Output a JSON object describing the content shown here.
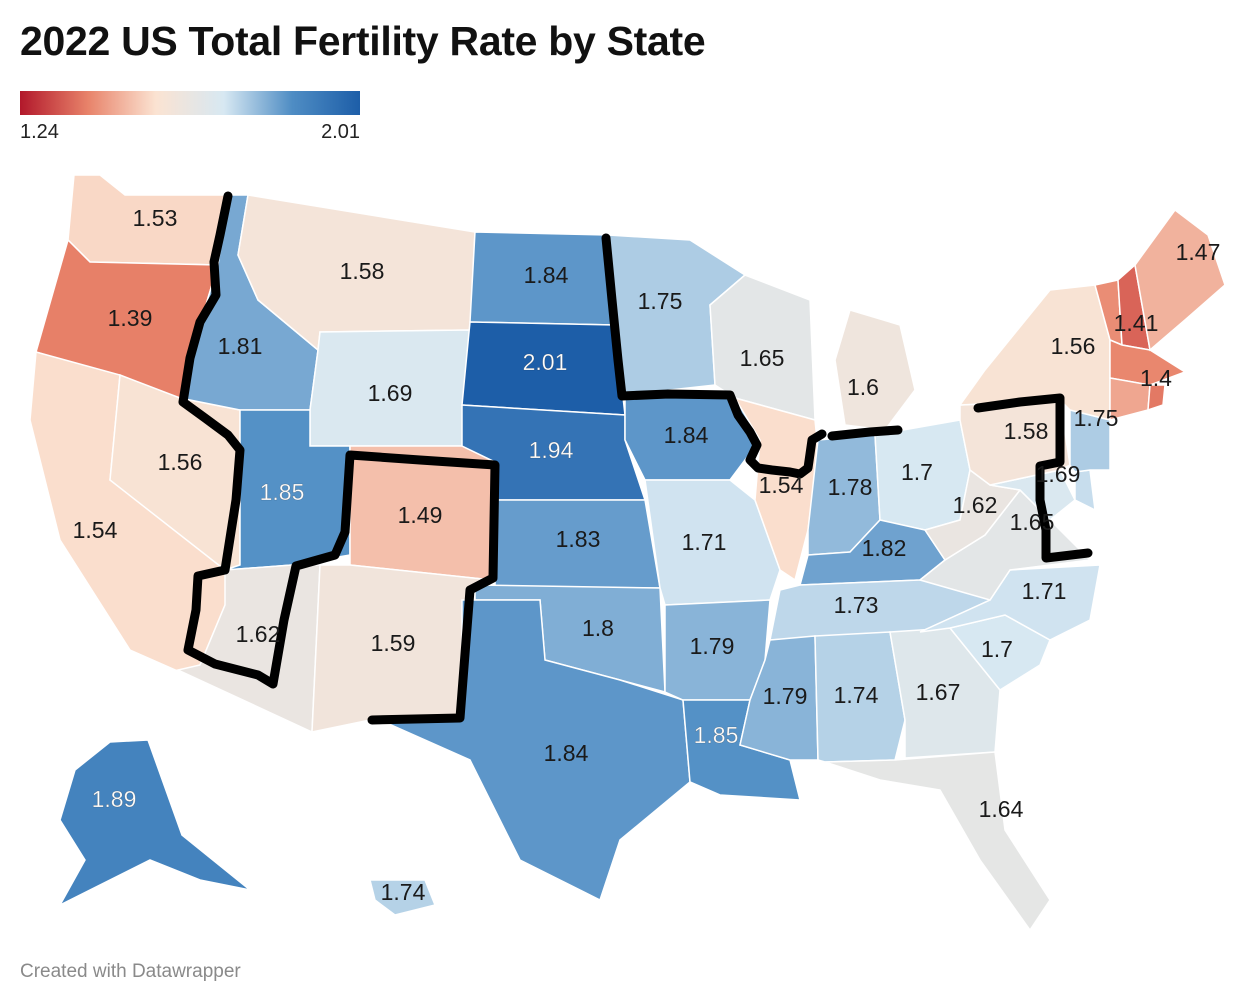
{
  "title": "2022 US Total Fertility Rate by State",
  "credit": "Created with Datawrapper",
  "legend": {
    "min_label": "1.24",
    "max_label": "2.01",
    "min": 1.24,
    "max": 2.01,
    "colors": [
      "#b2182b",
      "#e8836a",
      "#fbe3d2",
      "#d7e8f2",
      "#4f8dc4",
      "#1d5ea8"
    ]
  },
  "chart_data": {
    "type": "choropleth",
    "title": "2022 US Total Fertility Rate by State",
    "scale": {
      "min": 1.24,
      "max": 2.01
    },
    "states": [
      {
        "name": "Washington",
        "label": "1.53",
        "value": 1.53
      },
      {
        "name": "Oregon",
        "label": "1.39",
        "value": 1.39
      },
      {
        "name": "California",
        "label": "1.54",
        "value": 1.54
      },
      {
        "name": "Nevada",
        "label": "1.56",
        "value": 1.56
      },
      {
        "name": "Idaho",
        "label": "1.81",
        "value": 1.81
      },
      {
        "name": "Montana",
        "label": "1.58",
        "value": 1.58
      },
      {
        "name": "Wyoming",
        "label": "1.69",
        "value": 1.69
      },
      {
        "name": "Utah",
        "label": "1.85",
        "value": 1.85
      },
      {
        "name": "Arizona",
        "label": "1.62",
        "value": 1.62
      },
      {
        "name": "Colorado",
        "label": "1.49",
        "value": 1.49
      },
      {
        "name": "New Mexico",
        "label": "1.59",
        "value": 1.59
      },
      {
        "name": "North Dakota",
        "label": "1.84",
        "value": 1.84
      },
      {
        "name": "South Dakota",
        "label": "2.01",
        "value": 2.01
      },
      {
        "name": "Nebraska",
        "label": "1.94",
        "value": 1.94
      },
      {
        "name": "Kansas",
        "label": "1.83",
        "value": 1.83
      },
      {
        "name": "Oklahoma",
        "label": "1.8",
        "value": 1.8
      },
      {
        "name": "Texas",
        "label": "1.84",
        "value": 1.84
      },
      {
        "name": "Minnesota",
        "label": "1.75",
        "value": 1.75
      },
      {
        "name": "Iowa",
        "label": "1.84",
        "value": 1.84
      },
      {
        "name": "Missouri",
        "label": "1.71",
        "value": 1.71
      },
      {
        "name": "Arkansas",
        "label": "1.79",
        "value": 1.79
      },
      {
        "name": "Louisiana",
        "label": "1.85",
        "value": 1.85
      },
      {
        "name": "Wisconsin",
        "label": "1.65",
        "value": 1.65
      },
      {
        "name": "Illinois",
        "label": "1.54",
        "value": 1.54
      },
      {
        "name": "Michigan",
        "label": "1.6",
        "value": 1.6
      },
      {
        "name": "Indiana",
        "label": "1.78",
        "value": 1.78
      },
      {
        "name": "Ohio",
        "label": "1.7",
        "value": 1.7
      },
      {
        "name": "Kentucky",
        "label": "1.82",
        "value": 1.82
      },
      {
        "name": "Tennessee",
        "label": "1.73",
        "value": 1.73
      },
      {
        "name": "Mississippi",
        "label": "1.79",
        "value": 1.79
      },
      {
        "name": "Alabama",
        "label": "1.74",
        "value": 1.74
      },
      {
        "name": "Georgia",
        "label": "1.67",
        "value": 1.67
      },
      {
        "name": "Florida",
        "label": "1.64",
        "value": 1.64
      },
      {
        "name": "South Carolina",
        "label": "1.7",
        "value": 1.7
      },
      {
        "name": "North Carolina",
        "label": "1.71",
        "value": 1.71
      },
      {
        "name": "Virginia",
        "label": "1.65",
        "value": 1.65
      },
      {
        "name": "West Virginia",
        "label": "1.62",
        "value": 1.62
      },
      {
        "name": "Maryland",
        "label": "1.69",
        "value": 1.69
      },
      {
        "name": "Pennsylvania",
        "label": "1.58",
        "value": 1.58
      },
      {
        "name": "New Jersey",
        "label": "1.75",
        "value": 1.75
      },
      {
        "name": "New York",
        "label": "1.56",
        "value": 1.56
      },
      {
        "name": "Vermont",
        "label": "1.41",
        "value": 1.41
      },
      {
        "name": "Massachusetts",
        "label": "1.4",
        "value": 1.4
      },
      {
        "name": "Maine",
        "label": "1.47",
        "value": 1.47
      },
      {
        "name": "Alaska",
        "label": "1.89",
        "value": 1.89
      },
      {
        "name": "Hawaii",
        "label": "1.74",
        "value": 1.74
      },
      {
        "name": "New Hampshire",
        "value": 1.35
      },
      {
        "name": "Connecticut",
        "value": 1.45
      },
      {
        "name": "Rhode Island",
        "value": 1.38
      },
      {
        "name": "Delaware",
        "value": 1.72
      }
    ]
  }
}
